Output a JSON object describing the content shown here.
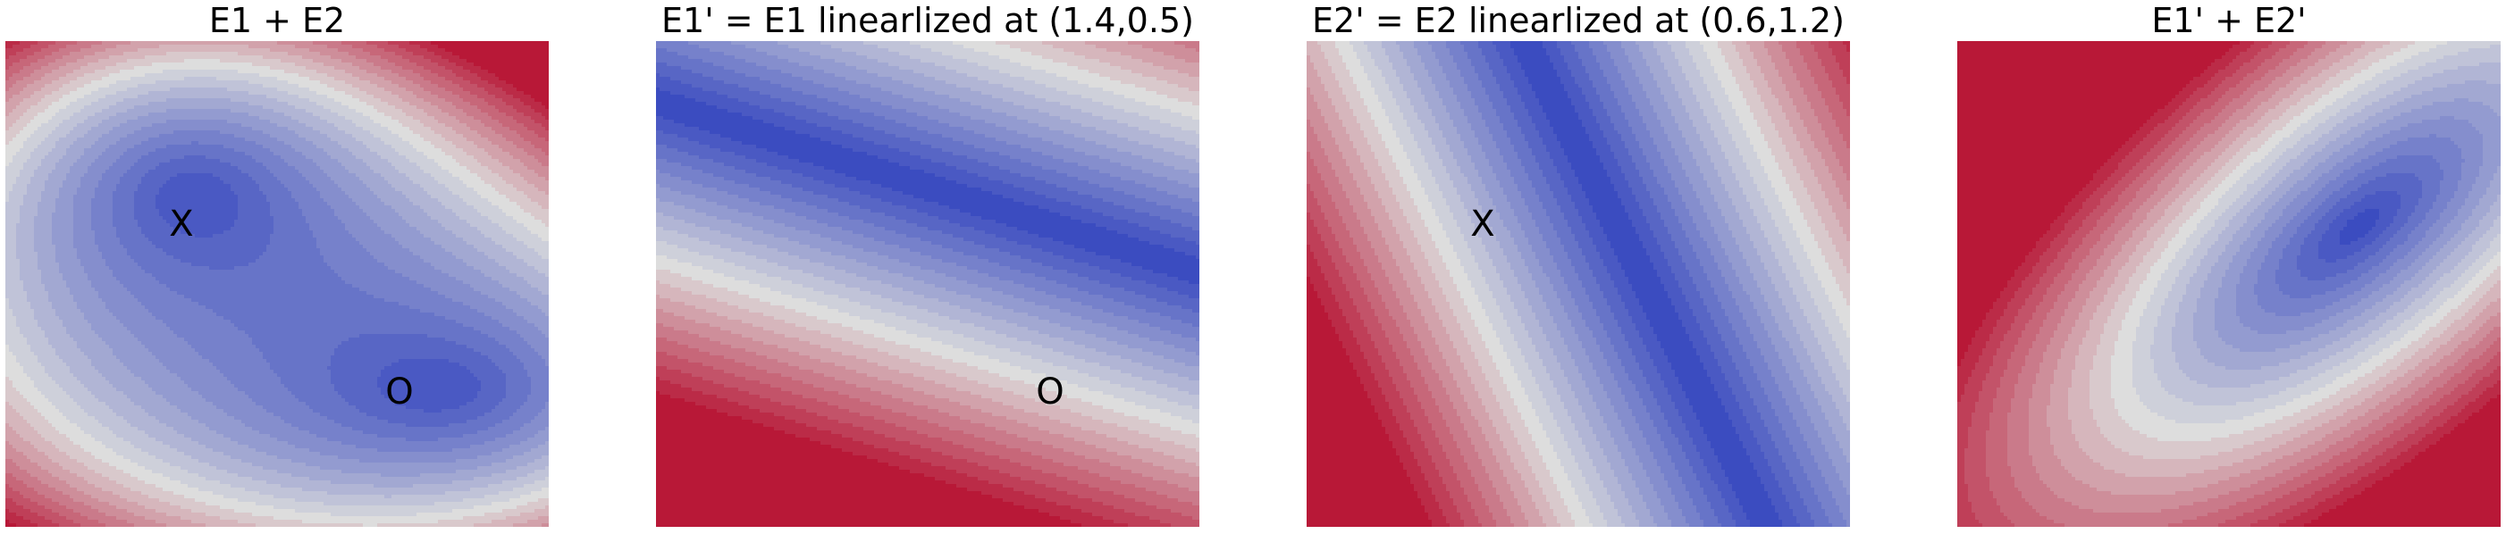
{
  "panels": [
    {
      "title": "E1 + E2",
      "marks": [
        {
          "label": "X"
        },
        {
          "label": "O"
        }
      ]
    },
    {
      "title": "E1' = E1 linearlized at (1.4,0.5)",
      "marks": [
        {
          "label": "O"
        }
      ]
    },
    {
      "title": "E2' = E2 linearlized at (0.6,1.2)",
      "marks": [
        {
          "label": "X"
        }
      ]
    },
    {
      "title": "E1' +  E2'",
      "marks": []
    }
  ],
  "colors": {
    "low": "#3b4cc0",
    "mid": "#dddddd",
    "high": "#b40426"
  }
}
